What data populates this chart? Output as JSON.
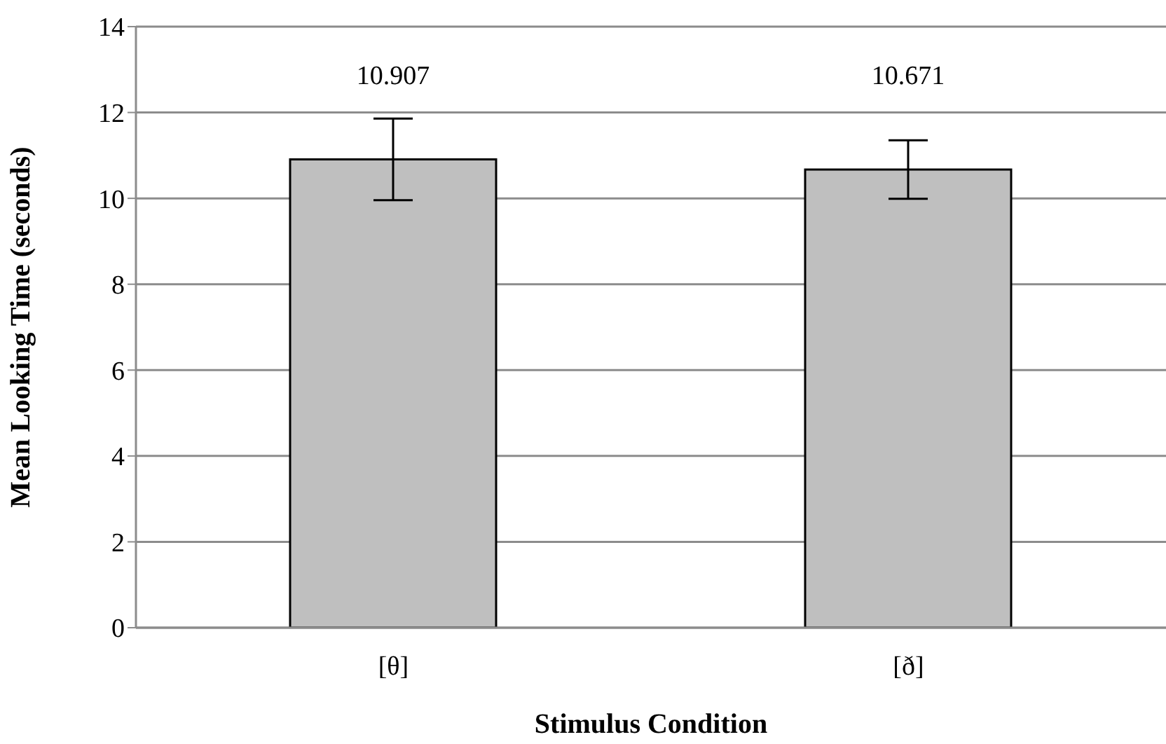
{
  "chart_data": {
    "type": "bar",
    "xlabel": "Stimulus Condition",
    "ylabel": "Mean Looking Time (seconds)",
    "categories": [
      "[θ]",
      "[ð]"
    ],
    "values": [
      10.907,
      10.671
    ],
    "errors": [
      0.95,
      0.68
    ],
    "color": "#bfbfbf",
    "data_labels": true,
    "ylim": [
      0,
      14
    ],
    "yticks": [
      0,
      2,
      4,
      6,
      8,
      10,
      12,
      14
    ],
    "grid": "y"
  }
}
